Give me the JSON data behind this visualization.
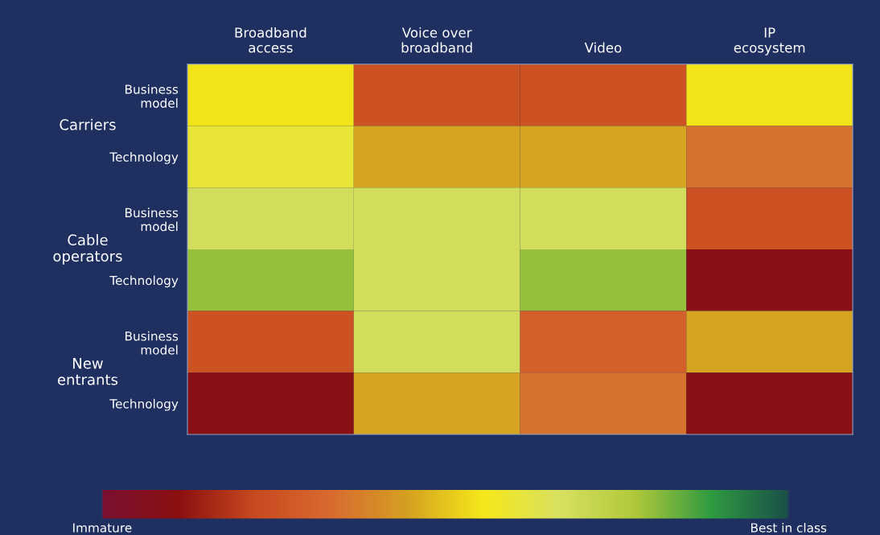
{
  "chart_data": {
    "type": "heatmap",
    "categories": [
      "Broadband\naccess",
      "Voice over\nbroadband",
      "Video",
      "IP\necosystem"
    ],
    "y_categories": [
      "Business\nmodel",
      "Technology",
      "Business\nmodel",
      "Technology",
      "Business\nmodel",
      "Technology"
    ],
    "cells": [
      [
        0.55,
        0.25,
        0.25,
        0.55
      ],
      [
        0.6,
        0.45,
        0.45,
        0.35
      ],
      [
        0.68,
        0.68,
        0.68,
        0.25
      ],
      [
        0.8,
        0.68,
        0.8,
        0.1
      ],
      [
        0.25,
        0.68,
        0.3,
        0.45
      ],
      [
        0.1,
        0.45,
        0.35,
        0.1
      ]
    ],
    "colors": [
      "#7a1030",
      "#8b1010",
      "#c84a20",
      "#d86a30",
      "#d4a020",
      "#f5e81a",
      "#d8e060",
      "#b0c83a",
      "#2e9a40",
      "#1a5048"
    ],
    "clim": [
      0,
      1
    ],
    "cticks": [
      {
        "value": 0,
        "label": "Immature"
      },
      {
        "value": 1,
        "label": "Best in class"
      }
    ],
    "annotations": [
      "Carriers",
      "Cable\noperators",
      "New\nentrants"
    ]
  }
}
